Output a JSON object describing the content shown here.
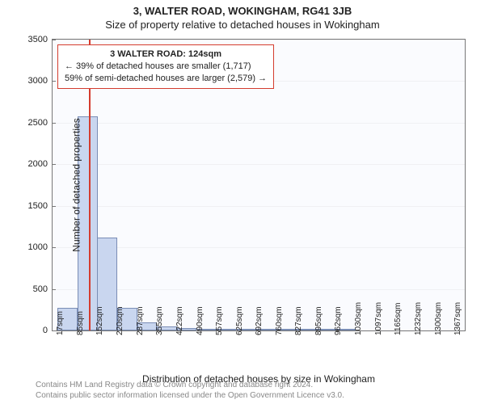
{
  "titles": {
    "sup": "3, WALTER ROAD, WOKINGHAM, RG41 3JB",
    "sub": "Size of property relative to detached houses in Wokingham",
    "sup_fontsize": 13,
    "sub_fontsize": 13
  },
  "chart": {
    "type": "histogram",
    "background_color": "#fafbfe",
    "axis_color": "#777777",
    "grid_color": "#f0f0f3",
    "bar_fill": "#c9d6ef",
    "bar_border": "#7a8db5",
    "marker_color": "#d43c2e",
    "ylim": [
      0,
      3500
    ],
    "ytick_step": 500,
    "yticks": [
      0,
      500,
      1000,
      1500,
      2000,
      2500,
      3000,
      3500
    ],
    "ylabel": "Number of detached properties",
    "xlabel": "Distribution of detached houses by size in Wokingham",
    "label_fontsize": 12,
    "tick_fontsize": 11,
    "x_tick_fontsize": 10,
    "x_min": 0,
    "x_max": 1400,
    "x_tick_labels": [
      "17sqm",
      "85sqm",
      "152sqm",
      "220sqm",
      "287sqm",
      "355sqm",
      "422sqm",
      "490sqm",
      "557sqm",
      "625sqm",
      "692sqm",
      "760sqm",
      "827sqm",
      "895sqm",
      "962sqm",
      "1030sqm",
      "1097sqm",
      "1165sqm",
      "1232sqm",
      "1300sqm",
      "1367sqm"
    ],
    "x_tick_positions": [
      17,
      85,
      152,
      220,
      287,
      355,
      422,
      490,
      557,
      625,
      692,
      760,
      827,
      895,
      962,
      1030,
      1097,
      1165,
      1232,
      1300,
      1367
    ],
    "bin_width": 67.5,
    "bins": [
      {
        "start": 17,
        "count": 270
      },
      {
        "start": 85,
        "count": 2580
      },
      {
        "start": 152,
        "count": 1120
      },
      {
        "start": 220,
        "count": 275
      },
      {
        "start": 287,
        "count": 100
      },
      {
        "start": 355,
        "count": 45
      },
      {
        "start": 422,
        "count": 25
      },
      {
        "start": 490,
        "count": 12
      },
      {
        "start": 557,
        "count": 6
      },
      {
        "start": 625,
        "count": 4
      },
      {
        "start": 692,
        "count": 3
      },
      {
        "start": 760,
        "count": 2
      },
      {
        "start": 827,
        "count": 1
      },
      {
        "start": 895,
        "count": 1
      },
      {
        "start": 962,
        "count": 1
      },
      {
        "start": 1030,
        "count": 0
      },
      {
        "start": 1097,
        "count": 0
      },
      {
        "start": 1165,
        "count": 0
      },
      {
        "start": 1232,
        "count": 0
      },
      {
        "start": 1300,
        "count": 0
      }
    ],
    "marker_value": 124,
    "annotation": {
      "line1": "3 WALTER ROAD: 124sqm",
      "line2": "← 39% of detached houses are smaller (1,717)",
      "line3": "59% of semi-detached houses are larger (2,579) →",
      "border_color": "#d43c2e",
      "fontsize": 11,
      "top_offset": 6
    }
  },
  "footer": {
    "line1": "Contains HM Land Registry data © Crown copyright and database right 2024.",
    "line2": "Contains public sector information licensed under the Open Government Licence v3.0.",
    "color": "#888888",
    "fontsize": 10
  }
}
